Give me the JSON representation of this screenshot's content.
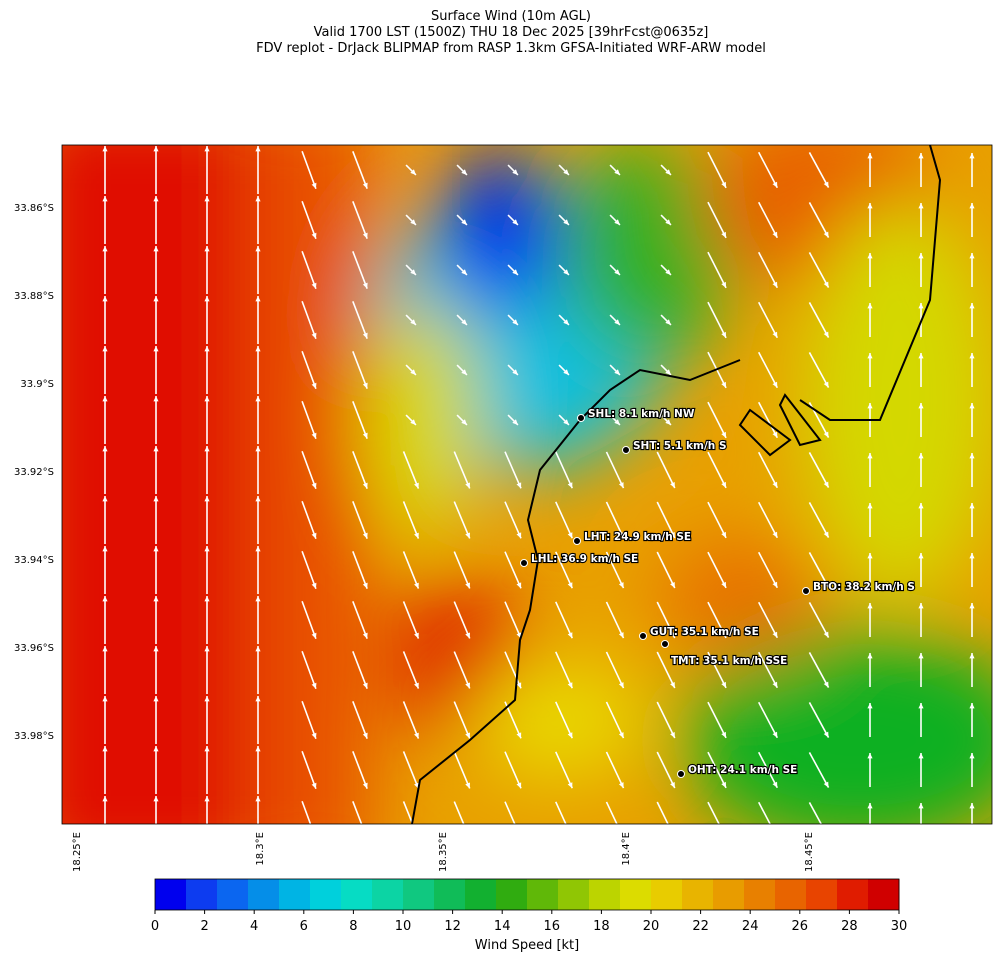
{
  "header": {
    "title": "Surface Wind (10m AGL)",
    "subtitle": "Valid 1700 LST (1500Z) THU 18 Dec 2025 [39hrFcst@0635z]",
    "source": "FDV replot - DrJack BLIPMAP from RASP 1.3km GFSA-Initiated WRF-ARW model"
  },
  "latitude_labels": [
    "33.86°S",
    "33.88°S",
    "33.9°S",
    "33.92°S",
    "33.94°S",
    "33.96°S",
    "33.98°S"
  ],
  "longitude_labels": [
    "18.25°E",
    "18.3°E",
    "18.35°E",
    "18.4°E",
    "18.45°E"
  ],
  "stations": [
    "SHL: 8.1 km/h NW",
    "SHT: 5.1 km/h S",
    "LHT: 24.9 km/h SE",
    "LHL: 36.9 km/h SE",
    "BTO: 38.2 km/h S",
    "GUT: 35.1 km/h SE",
    "TMT: 35.1 km/h SSE",
    "OHT: 24.1 km/h SE"
  ],
  "colorbar": {
    "label": "Wind Speed [kt]",
    "range": [
      0,
      30
    ],
    "ticks": [
      0,
      2,
      4,
      6,
      8,
      10,
      12,
      14,
      16,
      18,
      20,
      22,
      24,
      26,
      28,
      30
    ],
    "colors": [
      "#0000ee",
      "#0d3cf0",
      "#0b66f0",
      "#058ee8",
      "#00b4e4",
      "#00d0dc",
      "#06dcc4",
      "#0cd4a4",
      "#10c880",
      "#10bc58",
      "#12b030",
      "#30ac10",
      "#60b808",
      "#90c604",
      "#bcd400",
      "#dcdc00",
      "#e8cc00",
      "#e8b400",
      "#e89c00",
      "#e88000",
      "#e86400",
      "#e84400",
      "#e01c00",
      "#d00000"
    ]
  }
}
